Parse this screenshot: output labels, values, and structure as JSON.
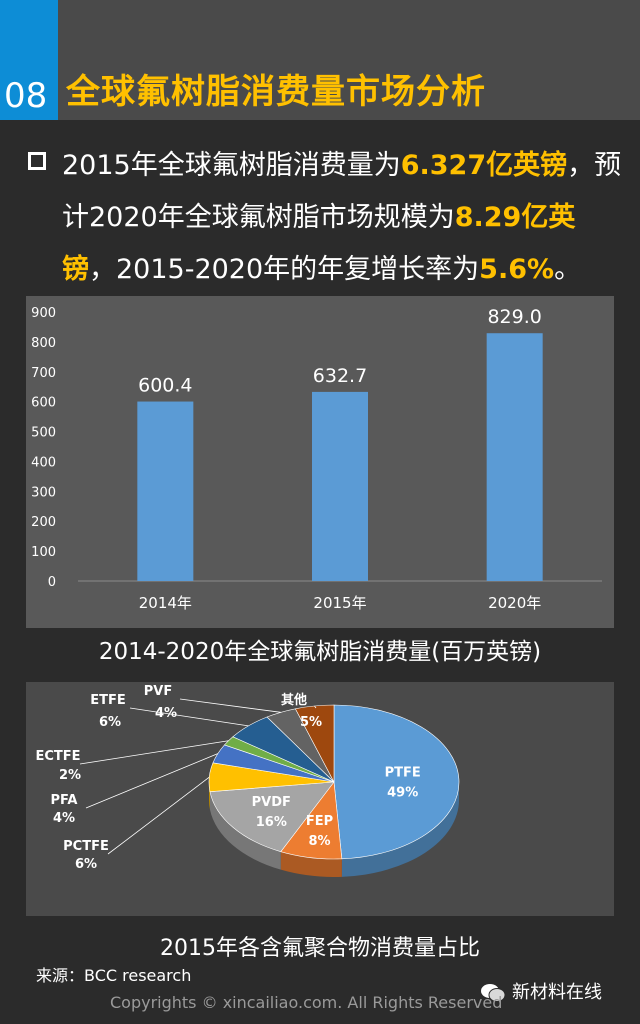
{
  "header": {
    "section_number": "08",
    "title": "全球氟树脂消费量市场分析"
  },
  "intro": {
    "part1": "2015年全球氟树脂消费量为",
    "hl1": "6.327亿英镑",
    "part2": "，预计2020年全球氟树脂市场规模为",
    "hl2": "8.29亿英镑",
    "part3": "，2015-2020年的年复增长率为",
    "hl3": "5.6%",
    "part4": "。"
  },
  "colors": {
    "accent_blue": "#0d8dd6",
    "highlight": "#ffc000",
    "bar": "#5b9bd5"
  },
  "chart_data": [
    {
      "type": "bar",
      "title": "2014-2020年全球氟树脂消费量(百万英镑)",
      "categories": [
        "2014年",
        "2015年",
        "2020年"
      ],
      "values": [
        600.4,
        632.7,
        829.0
      ],
      "value_labels": [
        "600.4",
        "632.7",
        "829.0"
      ],
      "ylim": [
        0,
        900
      ],
      "yticks": [
        0,
        100,
        200,
        300,
        400,
        500,
        600,
        700,
        800,
        900
      ],
      "grid": false,
      "legend": "none"
    },
    {
      "type": "pie",
      "title": "2015年各含氟聚合物消费量占比",
      "slices": [
        {
          "name": "PTFE",
          "value": 49,
          "label": "49%",
          "color": "#5b9bd5"
        },
        {
          "name": "FEP",
          "value": 8,
          "label": "8%",
          "color": "#ed7d31"
        },
        {
          "name": "PVDF",
          "value": 16,
          "label": "16%",
          "color": "#a5a5a5"
        },
        {
          "name": "PCTFE",
          "value": 6,
          "label": "6%",
          "color": "#ffc000"
        },
        {
          "name": "PFA",
          "value": 4,
          "label": "4%",
          "color": "#4472c4"
        },
        {
          "name": "ECTFE",
          "value": 2,
          "label": "2%",
          "color": "#70ad47"
        },
        {
          "name": "ETFE",
          "value": 6,
          "label": "6%",
          "color": "#255e91"
        },
        {
          "name": "PVF",
          "value": 4,
          "label": "4%",
          "color": "#636363"
        },
        {
          "name": "其他",
          "value": 5,
          "label": "5%",
          "color": "#9e480e"
        }
      ]
    }
  ],
  "footer": {
    "source": "来源：BCC research",
    "account": "新材料在线",
    "copyright": "Copyrights © xincailiao.com. All Rights Reserved"
  }
}
